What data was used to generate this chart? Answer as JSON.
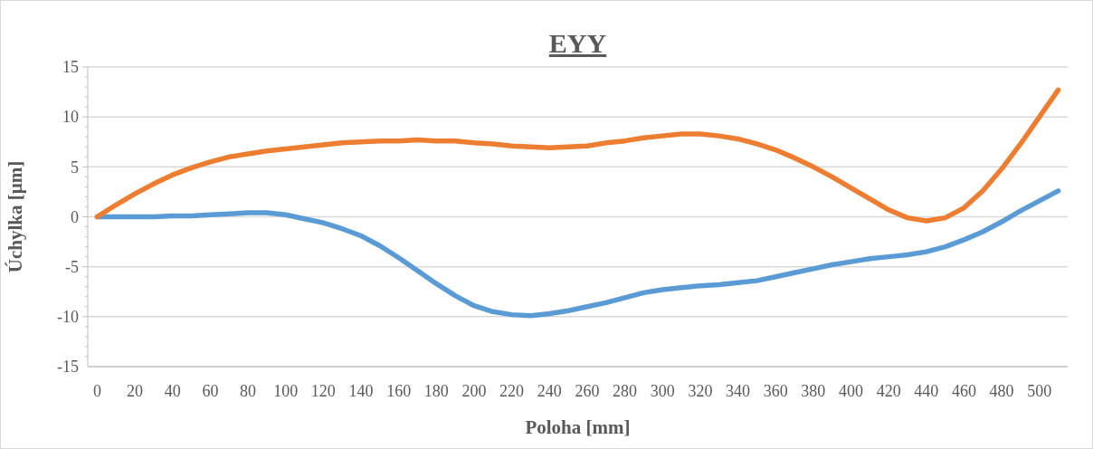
{
  "chart_data": {
    "type": "line",
    "title": "EYY",
    "xlabel": "Poloha [mm]",
    "ylabel": "Úchylka [µm]",
    "x": [
      0,
      10,
      20,
      30,
      40,
      50,
      60,
      70,
      80,
      90,
      100,
      110,
      120,
      130,
      140,
      150,
      160,
      170,
      180,
      190,
      200,
      210,
      220,
      230,
      240,
      250,
      260,
      270,
      280,
      290,
      300,
      310,
      320,
      330,
      340,
      350,
      360,
      370,
      380,
      390,
      400,
      410,
      420,
      430,
      440,
      450,
      460,
      470,
      480,
      490,
      500,
      510
    ],
    "xlim": [
      -5,
      515
    ],
    "xticks": [
      0,
      20,
      40,
      60,
      80,
      100,
      120,
      140,
      160,
      180,
      200,
      220,
      240,
      260,
      280,
      300,
      320,
      340,
      360,
      380,
      400,
      420,
      440,
      460,
      480,
      500
    ],
    "ylim": [
      -15,
      15
    ],
    "yticks": [
      -15,
      -10,
      -5,
      0,
      5,
      10,
      15
    ],
    "grid": "y",
    "marker": "none",
    "line_style": "solid",
    "series": [
      {
        "color": "#5b9bd5",
        "values": [
          0,
          0,
          0,
          0,
          0.1,
          0.1,
          0.2,
          0.3,
          0.4,
          0.4,
          0.2,
          -0.2,
          -0.6,
          -1.2,
          -1.9,
          -2.9,
          -4.1,
          -5.4,
          -6.7,
          -7.9,
          -8.9,
          -9.5,
          -9.8,
          -9.9,
          -9.7,
          -9.4,
          -9,
          -8.6,
          -8.1,
          -7.6,
          -7.3,
          -7.1,
          -6.9,
          -6.8,
          -6.6,
          -6.4,
          -6,
          -5.6,
          -5.2,
          -4.8,
          -4.5,
          -4.2,
          -4,
          -3.8,
          -3.5,
          -3,
          -2.3,
          -1.5,
          -0.5,
          0.6,
          1.6,
          2.6
        ]
      },
      {
        "color": "#ed7d31",
        "values": [
          0,
          1.2,
          2.3,
          3.3,
          4.2,
          4.9,
          5.5,
          6,
          6.3,
          6.6,
          6.8,
          7,
          7.2,
          7.4,
          7.5,
          7.6,
          7.6,
          7.7,
          7.6,
          7.6,
          7.4,
          7.3,
          7.1,
          7,
          6.9,
          7,
          7.1,
          7.4,
          7.6,
          7.9,
          8.1,
          8.3,
          8.3,
          8.1,
          7.8,
          7.3,
          6.7,
          5.9,
          5,
          4,
          2.9,
          1.8,
          0.7,
          -0.1,
          -0.4,
          -0.1,
          0.9,
          2.6,
          4.8,
          7.3,
          10,
          12.7
        ]
      }
    ]
  }
}
